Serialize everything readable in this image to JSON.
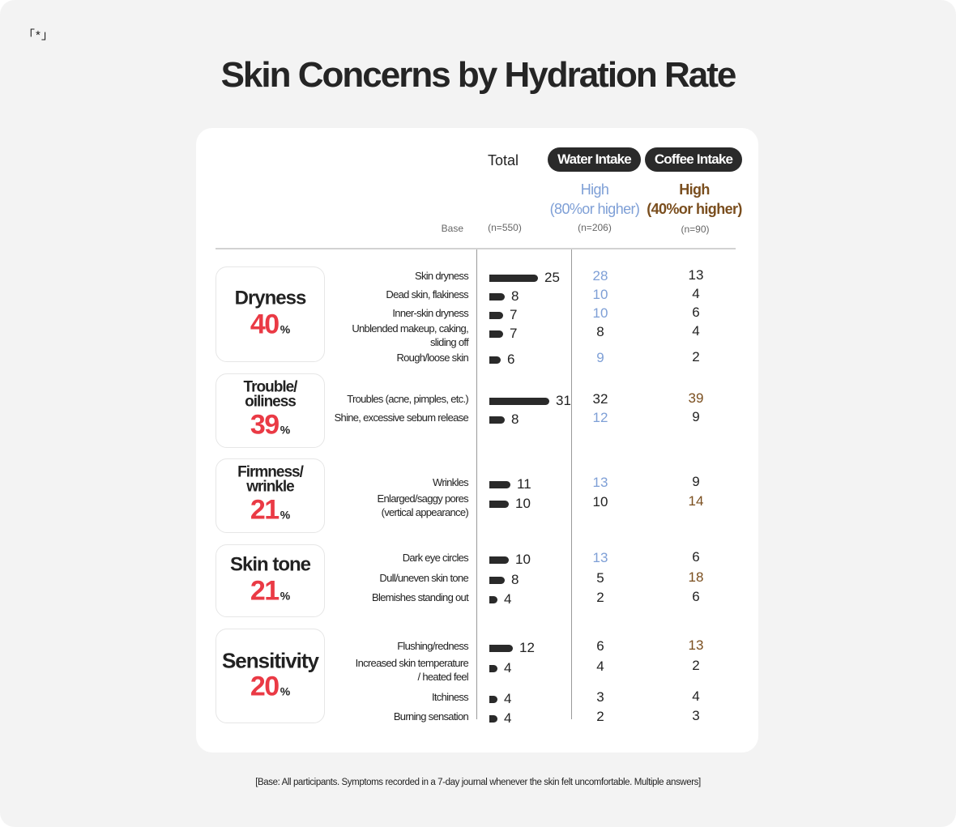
{
  "mark": "「*」",
  "title": "Skin Concerns by Hydration Rate",
  "columns": {
    "base_label": "Base",
    "total": {
      "label": "Total",
      "n": "(n=550)"
    },
    "water": {
      "pill": "Water Intake",
      "sub1": "High",
      "sub2": "(80%or higher)",
      "n": "(n=206)"
    },
    "coffee": {
      "pill": "Coffee Intake",
      "sub1": "High",
      "sub2": "(40%or higher)",
      "n": "(n=90)"
    }
  },
  "colors": {
    "accent_red": "#ea3a45",
    "water_blue": "#7e9fd6",
    "coffee_brown": "#7a4e1e",
    "default": "#222222",
    "bar": "#2a2a2a"
  },
  "footnote": "[Base: All participants. Symptoms recorded in a 7-day journal  whenever the skin felt uncomfortable. Multiple answers]",
  "chart_data": {
    "type": "table",
    "title": "Skin Concerns by Hydration Rate",
    "unit": "%",
    "series": [
      "Total",
      "Water Intake High (80%or higher)",
      "Coffee Intake High (40%or higher)"
    ],
    "categories": [
      {
        "name_lines": [
          "Dryness"
        ],
        "pct": "40",
        "items": [
          {
            "label": [
              "Skin dryness"
            ],
            "total": 25,
            "water": 28,
            "water_hl": true,
            "coffee": 13,
            "coffee_hl": false
          },
          {
            "label": [
              "Dead skin, flakiness"
            ],
            "total": 8,
            "water": 10,
            "water_hl": true,
            "coffee": 4,
            "coffee_hl": false
          },
          {
            "label": [
              "Inner-skin dryness"
            ],
            "total": 7,
            "water": 10,
            "water_hl": true,
            "coffee": 6,
            "coffee_hl": false
          },
          {
            "label": [
              "Unblended makeup, caking,",
              "sliding off"
            ],
            "total": 7,
            "water": 8,
            "water_hl": false,
            "coffee": 4,
            "coffee_hl": false
          },
          {
            "label": [
              "Rough/loose skin"
            ],
            "total": 6,
            "water": 9,
            "water_hl": true,
            "coffee": 2,
            "coffee_hl": false
          }
        ]
      },
      {
        "name_lines": [
          "Trouble/",
          "oiliness"
        ],
        "pct": "39",
        "items": [
          {
            "label": [
              "Troubles (acne, pimples, etc.)"
            ],
            "total": 31,
            "water": 32,
            "water_hl": false,
            "coffee": 39,
            "coffee_hl": true
          },
          {
            "label": [
              "Shine, excessive sebum release"
            ],
            "total": 8,
            "water": 12,
            "water_hl": true,
            "coffee": 9,
            "coffee_hl": false
          }
        ]
      },
      {
        "name_lines": [
          "Firmness/",
          "wrinkle"
        ],
        "pct": "21",
        "items": [
          {
            "label": [
              "Wrinkles"
            ],
            "total": 11,
            "water": 13,
            "water_hl": true,
            "coffee": 9,
            "coffee_hl": false
          },
          {
            "label": [
              "Enlarged/saggy pores",
              "(vertical appearance)"
            ],
            "total": 10,
            "water": 10,
            "water_hl": false,
            "coffee": 14,
            "coffee_hl": true
          }
        ]
      },
      {
        "name_lines": [
          "Skin tone"
        ],
        "pct": "21",
        "items": [
          {
            "label": [
              "Dark eye circles"
            ],
            "total": 10,
            "water": 13,
            "water_hl": true,
            "coffee": 6,
            "coffee_hl": false
          },
          {
            "label": [
              "Dull/uneven skin tone"
            ],
            "total": 8,
            "water": 5,
            "water_hl": false,
            "coffee": 18,
            "coffee_hl": true
          },
          {
            "label": [
              "Blemishes standing out"
            ],
            "total": 4,
            "water": 2,
            "water_hl": false,
            "coffee": 6,
            "coffee_hl": false
          }
        ]
      },
      {
        "name_lines": [
          "Sensitivity"
        ],
        "pct": "20",
        "items": [
          {
            "label": [
              "Flushing/redness"
            ],
            "total": 12,
            "water": 6,
            "water_hl": false,
            "coffee": 13,
            "coffee_hl": true
          },
          {
            "label": [
              "Increased skin temperature",
              "/ heated feel"
            ],
            "total": 4,
            "water": 4,
            "water_hl": false,
            "coffee": 2,
            "coffee_hl": false
          },
          {
            "label": [
              "Itchiness"
            ],
            "total": 4,
            "water": 3,
            "water_hl": false,
            "coffee": 4,
            "coffee_hl": false
          },
          {
            "label": [
              "Burning sensation"
            ],
            "total": 4,
            "water": 2,
            "water_hl": false,
            "coffee": 3,
            "coffee_hl": false
          }
        ]
      }
    ]
  }
}
